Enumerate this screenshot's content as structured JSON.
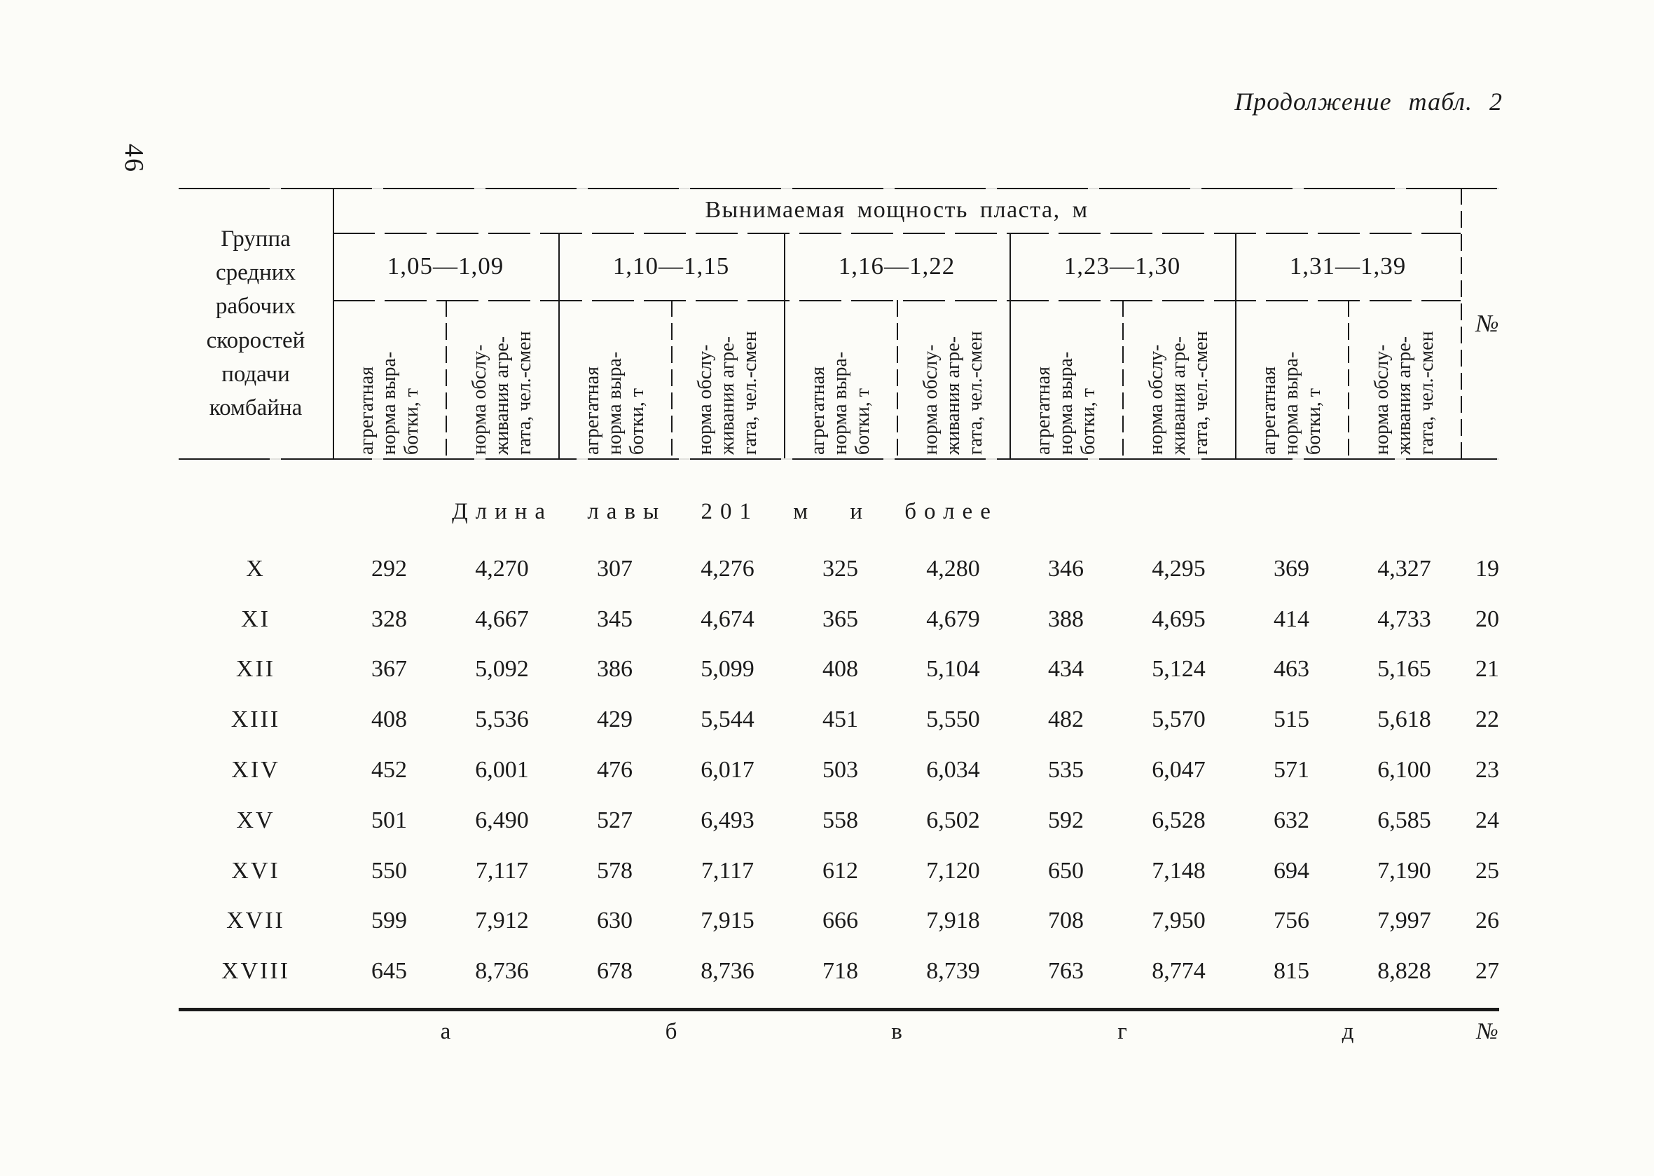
{
  "colors": {
    "ink": "#1b1b1b",
    "paper": "#fcfcf8"
  },
  "page": {
    "number": "46",
    "caption": "Продолжение табл. 2"
  },
  "table": {
    "row_group_header": "Группа\nсредних\nрабочих\nскоростей\nподачи\nкомбайна",
    "main_header": "Вынимаемая мощность пласта, м",
    "number_column_header": "№",
    "groups": [
      "1,05—1,09",
      "1,10—1,15",
      "1,16—1,22",
      "1,23—1,30",
      "1,31—1,39"
    ],
    "subheaders": {
      "output_norm": "агрегатная\nнорма выра-\nботки, т",
      "service_norm": "норма обслу-\nживания агре-\nгата, чел.-смен"
    },
    "section_title": "Длина лавы 201 м и более",
    "rows": [
      {
        "group": "X",
        "values": [
          "292",
          "4,270",
          "307",
          "4,276",
          "325",
          "4,280",
          "346",
          "4,295",
          "369",
          "4,327"
        ],
        "num": "19"
      },
      {
        "group": "XI",
        "values": [
          "328",
          "4,667",
          "345",
          "4,674",
          "365",
          "4,679",
          "388",
          "4,695",
          "414",
          "4,733"
        ],
        "num": "20"
      },
      {
        "group": "XII",
        "values": [
          "367",
          "5,092",
          "386",
          "5,099",
          "408",
          "5,104",
          "434",
          "5,124",
          "463",
          "5,165"
        ],
        "num": "21"
      },
      {
        "group": "XIII",
        "values": [
          "408",
          "5,536",
          "429",
          "5,544",
          "451",
          "5,550",
          "482",
          "5,570",
          "515",
          "5,618"
        ],
        "num": "22"
      },
      {
        "group": "XIV",
        "values": [
          "452",
          "6,001",
          "476",
          "6,017",
          "503",
          "6,034",
          "535",
          "6,047",
          "571",
          "6,100"
        ],
        "num": "23"
      },
      {
        "group": "XV",
        "values": [
          "501",
          "6,490",
          "527",
          "6,493",
          "558",
          "6,502",
          "592",
          "6,528",
          "632",
          "6,585"
        ],
        "num": "24"
      },
      {
        "group": "XVI",
        "values": [
          "550",
          "7,117",
          "578",
          "7,117",
          "612",
          "7,120",
          "650",
          "7,148",
          "694",
          "7,190"
        ],
        "num": "25"
      },
      {
        "group": "XVII",
        "values": [
          "599",
          "7,912",
          "630",
          "7,915",
          "666",
          "7,918",
          "708",
          "7,950",
          "756",
          "7,997"
        ],
        "num": "26"
      },
      {
        "group": "XVIII",
        "values": [
          "645",
          "8,736",
          "678",
          "8,736",
          "718",
          "8,739",
          "763",
          "8,774",
          "815",
          "8,828"
        ],
        "num": "27"
      }
    ],
    "footer_letters": [
      "а",
      "б",
      "в",
      "г",
      "д"
    ],
    "footer_number_label": "№"
  }
}
